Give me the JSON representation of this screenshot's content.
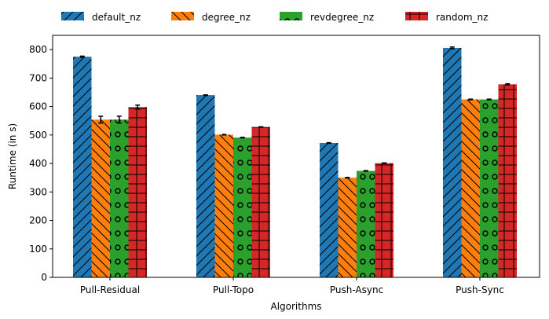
{
  "chart_data": {
    "type": "bar",
    "xlabel": "Algorithms",
    "ylabel": "Runtime (in s)",
    "ylim": [
      0,
      850
    ],
    "yticks": [
      0,
      100,
      200,
      300,
      400,
      500,
      600,
      700,
      800
    ],
    "categories": [
      "Pull-Residual",
      "Pull-Topo",
      "Push-Async",
      "Push-Sync"
    ],
    "legend_placement": "top, above plot",
    "series": [
      {
        "name": "default_nz",
        "color": "#1f77b4",
        "pattern": "diagonal-forward",
        "values": [
          775,
          640,
          472,
          806
        ],
        "errors": [
          2,
          1,
          1,
          3
        ]
      },
      {
        "name": "degree_nz",
        "color": "#ff7f0e",
        "pattern": "diagonal-backward",
        "values": [
          554,
          501,
          350,
          625
        ],
        "errors": [
          12,
          1,
          1,
          1
        ]
      },
      {
        "name": "revdegree_nz",
        "color": "#2ca02c",
        "pattern": "circles",
        "values": [
          554,
          491,
          374,
          625
        ],
        "errors": [
          12,
          1,
          1,
          1
        ]
      },
      {
        "name": "random_nz",
        "color": "#d62728",
        "pattern": "grid",
        "values": [
          598,
          528,
          401,
          678
        ],
        "errors": [
          7,
          1,
          1,
          2
        ]
      }
    ]
  }
}
